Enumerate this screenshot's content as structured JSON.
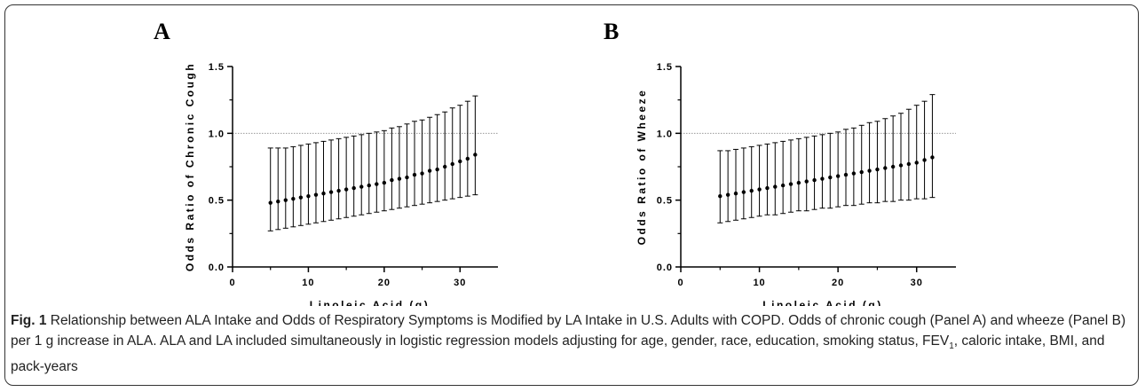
{
  "chart_data": [
    {
      "type": "scatter",
      "panel_label": "A",
      "xlabel": "Linoleic Acid (g)",
      "ylabel": "Odds Ratio of Chronic Cough",
      "xlim": [
        0,
        35
      ],
      "ylim": [
        0.0,
        1.5
      ],
      "xticks": [
        "0",
        "10",
        "20",
        "30"
      ],
      "yticks": [
        "0.0",
        "0.5",
        "1.0",
        "1.5"
      ],
      "reference_line": 1.0,
      "x": [
        5,
        6,
        7,
        8,
        9,
        10,
        11,
        12,
        13,
        14,
        15,
        16,
        17,
        18,
        19,
        20,
        21,
        22,
        23,
        24,
        25,
        26,
        27,
        28,
        29,
        30,
        31,
        32
      ],
      "y": [
        0.48,
        0.49,
        0.5,
        0.51,
        0.52,
        0.53,
        0.54,
        0.55,
        0.56,
        0.57,
        0.58,
        0.59,
        0.6,
        0.61,
        0.62,
        0.63,
        0.65,
        0.66,
        0.67,
        0.69,
        0.7,
        0.72,
        0.73,
        0.75,
        0.77,
        0.79,
        0.81,
        0.84
      ],
      "lower": [
        0.27,
        0.28,
        0.29,
        0.3,
        0.31,
        0.32,
        0.33,
        0.34,
        0.35,
        0.36,
        0.37,
        0.38,
        0.39,
        0.4,
        0.41,
        0.42,
        0.43,
        0.44,
        0.45,
        0.46,
        0.47,
        0.48,
        0.49,
        0.5,
        0.51,
        0.52,
        0.53,
        0.54
      ],
      "upper": [
        0.89,
        0.89,
        0.89,
        0.9,
        0.91,
        0.92,
        0.93,
        0.94,
        0.95,
        0.96,
        0.97,
        0.98,
        0.99,
        1.0,
        1.01,
        1.02,
        1.04,
        1.05,
        1.07,
        1.09,
        1.1,
        1.12,
        1.14,
        1.16,
        1.19,
        1.21,
        1.24,
        1.28
      ]
    },
    {
      "type": "scatter",
      "panel_label": "B",
      "xlabel": "Linoleic Acid (g)",
      "ylabel": "Odds Ratio of Wheeze",
      "xlim": [
        0,
        35
      ],
      "ylim": [
        0.0,
        1.5
      ],
      "xticks": [
        "0",
        "10",
        "20",
        "30"
      ],
      "yticks": [
        "0.0",
        "0.5",
        "1.0",
        "1.5"
      ],
      "reference_line": 1.0,
      "x": [
        5,
        6,
        7,
        8,
        9,
        10,
        11,
        12,
        13,
        14,
        15,
        16,
        17,
        18,
        19,
        20,
        21,
        22,
        23,
        24,
        25,
        26,
        27,
        28,
        29,
        30,
        31,
        32
      ],
      "y": [
        0.53,
        0.54,
        0.55,
        0.56,
        0.57,
        0.58,
        0.59,
        0.6,
        0.61,
        0.62,
        0.63,
        0.64,
        0.65,
        0.66,
        0.67,
        0.68,
        0.69,
        0.7,
        0.71,
        0.72,
        0.73,
        0.74,
        0.75,
        0.76,
        0.77,
        0.78,
        0.8,
        0.82
      ],
      "lower": [
        0.33,
        0.34,
        0.35,
        0.36,
        0.37,
        0.38,
        0.39,
        0.39,
        0.4,
        0.41,
        0.42,
        0.42,
        0.43,
        0.44,
        0.44,
        0.45,
        0.46,
        0.46,
        0.47,
        0.48,
        0.48,
        0.49,
        0.49,
        0.5,
        0.5,
        0.51,
        0.51,
        0.52
      ],
      "upper": [
        0.87,
        0.87,
        0.88,
        0.89,
        0.9,
        0.91,
        0.92,
        0.93,
        0.94,
        0.95,
        0.96,
        0.97,
        0.98,
        0.99,
        1.0,
        1.01,
        1.03,
        1.04,
        1.06,
        1.08,
        1.09,
        1.11,
        1.13,
        1.15,
        1.18,
        1.21,
        1.24,
        1.29
      ]
    }
  ],
  "caption": {
    "label": "Fig. 1",
    "text_1": " Relationship between ALA Intake and Odds of Respiratory Symptoms is Modified by LA Intake in U.S. Adults with COPD. Odds of chronic cough (Panel A) and wheeze (Panel B) per 1 g increase in ALA. ALA and LA included simultaneously in logistic regression models adjusting for age, gender, race, education, smoking status, FEV",
    "subscript": "1",
    "text_2": ", caloric intake, BMI, and pack-years"
  }
}
